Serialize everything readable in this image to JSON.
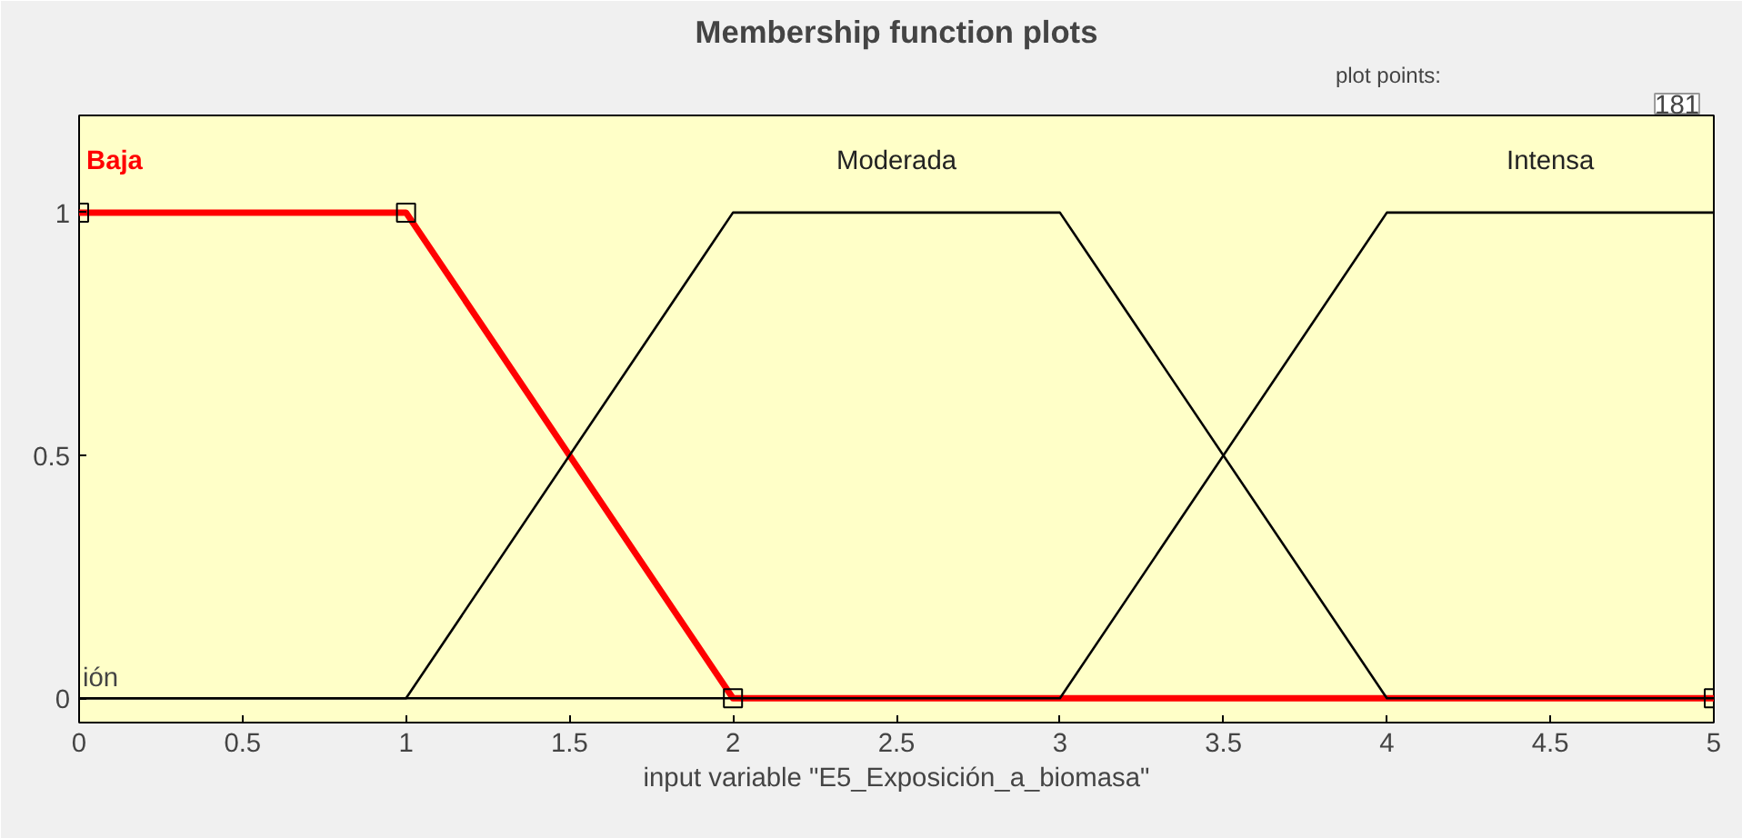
{
  "chart_data": {
    "type": "line",
    "title": "Membership function plots",
    "xlabel": "input variable \"E5_Exposición_a_biomasa\"",
    "ylabel": "ión",
    "annotations": [
      "plot points:",
      "181"
    ],
    "xlim": [
      0,
      5
    ],
    "ylim": [
      -0.05,
      1.2
    ],
    "xticks": [
      0,
      0.5,
      1,
      1.5,
      2,
      2.5,
      3,
      3.5,
      4,
      4.5,
      5
    ],
    "yticks": [
      0,
      0.5,
      1
    ],
    "grid": false,
    "series": [
      {
        "name": "Baja",
        "color": "#ff0000",
        "x": [
          0,
          1,
          2,
          5
        ],
        "values": [
          1,
          1,
          0,
          0
        ],
        "marker": "square"
      },
      {
        "name": "Moderada",
        "color": "#000000",
        "x": [
          0,
          1,
          2,
          3,
          4,
          5
        ],
        "values": [
          0,
          0,
          1,
          1,
          0,
          0
        ]
      },
      {
        "name": "Intensa",
        "color": "#000000",
        "x": [
          0,
          3,
          4,
          5
        ],
        "values": [
          0,
          0,
          1,
          1
        ]
      }
    ]
  }
}
